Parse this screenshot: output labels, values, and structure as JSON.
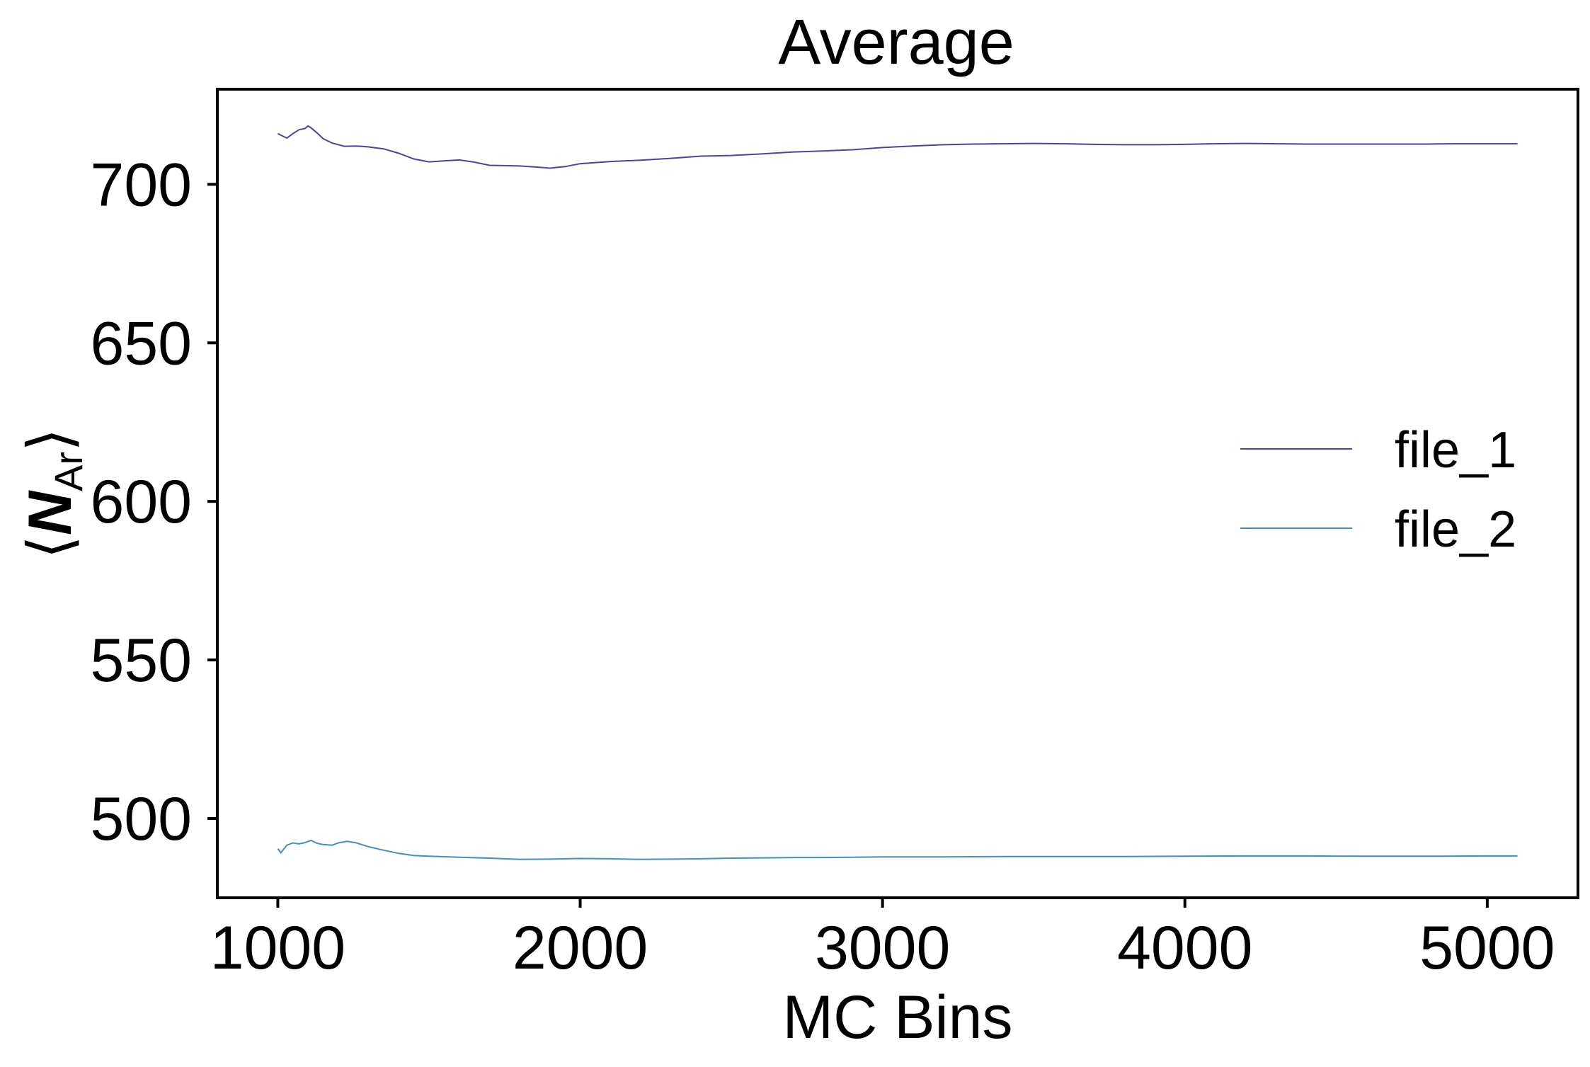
{
  "chart_data": {
    "type": "line",
    "title": "Average",
    "xlabel": "MC Bins",
    "ylabel": {
      "open": "⟨",
      "symbol": "N",
      "subscript": "Ar",
      "close": "⟩"
    },
    "xlim": [
      800,
      5300
    ],
    "ylim": [
      475,
      730
    ],
    "xticks": [
      1000,
      2000,
      3000,
      4000,
      5000
    ],
    "xtick_labels": [
      "1000",
      "2000",
      "3000",
      "4000",
      "5000"
    ],
    "yticks": [
      500,
      550,
      600,
      650,
      700
    ],
    "ytick_labels": [
      "500",
      "550",
      "600",
      "650",
      "700"
    ],
    "grid": false,
    "legend": {
      "placement": "center-right"
    },
    "series": [
      {
        "name": "file_1",
        "color": "#4b43a3",
        "points": [
          [
            1000,
            716
          ],
          [
            1010,
            715.5
          ],
          [
            1030,
            714.6
          ],
          [
            1050,
            716
          ],
          [
            1070,
            717.2
          ],
          [
            1090,
            717.6
          ],
          [
            1100,
            718.4
          ],
          [
            1110,
            717.8
          ],
          [
            1130,
            716.2
          ],
          [
            1150,
            714.4
          ],
          [
            1180,
            713
          ],
          [
            1220,
            712
          ],
          [
            1260,
            712.1
          ],
          [
            1300,
            711.8
          ],
          [
            1350,
            711.2
          ],
          [
            1400,
            709.8
          ],
          [
            1450,
            708
          ],
          [
            1500,
            707.1
          ],
          [
            1550,
            707.4
          ],
          [
            1600,
            707.7
          ],
          [
            1650,
            707
          ],
          [
            1700,
            706
          ],
          [
            1800,
            705.8
          ],
          [
            1850,
            705.5
          ],
          [
            1900,
            705.1
          ],
          [
            1950,
            705.6
          ],
          [
            2000,
            706.5
          ],
          [
            2100,
            707.2
          ],
          [
            2200,
            707.6
          ],
          [
            2300,
            708.2
          ],
          [
            2400,
            708.9
          ],
          [
            2500,
            709.1
          ],
          [
            2600,
            709.6
          ],
          [
            2700,
            710.2
          ],
          [
            2800,
            710.5
          ],
          [
            2900,
            710.9
          ],
          [
            3000,
            711.6
          ],
          [
            3100,
            712.1
          ],
          [
            3200,
            712.5
          ],
          [
            3300,
            712.7
          ],
          [
            3400,
            712.8
          ],
          [
            3500,
            712.9
          ],
          [
            3600,
            712.8
          ],
          [
            3700,
            712.6
          ],
          [
            3800,
            712.5
          ],
          [
            3900,
            712.5
          ],
          [
            4000,
            712.6
          ],
          [
            4100,
            712.8
          ],
          [
            4200,
            712.9
          ],
          [
            4300,
            712.8
          ],
          [
            4400,
            712.7
          ],
          [
            4500,
            712.7
          ],
          [
            4600,
            712.7
          ],
          [
            4700,
            712.7
          ],
          [
            4800,
            712.7
          ],
          [
            4900,
            712.8
          ],
          [
            5000,
            712.8
          ],
          [
            5100,
            712.8
          ]
        ]
      },
      {
        "name": "file_2",
        "color": "#3f8fc5",
        "points": [
          [
            1000,
            490.5
          ],
          [
            1010,
            489.2
          ],
          [
            1030,
            491.6
          ],
          [
            1050,
            492.3
          ],
          [
            1070,
            492
          ],
          [
            1090,
            492.4
          ],
          [
            1110,
            493.1
          ],
          [
            1130,
            492.2
          ],
          [
            1150,
            491.8
          ],
          [
            1180,
            491.6
          ],
          [
            1200,
            492.3
          ],
          [
            1230,
            492.8
          ],
          [
            1260,
            492.3
          ],
          [
            1300,
            491.1
          ],
          [
            1350,
            490
          ],
          [
            1400,
            489
          ],
          [
            1450,
            488.3
          ],
          [
            1500,
            488.1
          ],
          [
            1600,
            487.8
          ],
          [
            1700,
            487.5
          ],
          [
            1800,
            487.1
          ],
          [
            1900,
            487.2
          ],
          [
            2000,
            487.4
          ],
          [
            2100,
            487.3
          ],
          [
            2200,
            487.1
          ],
          [
            2300,
            487.2
          ],
          [
            2400,
            487.3
          ],
          [
            2500,
            487.5
          ],
          [
            2600,
            487.6
          ],
          [
            2700,
            487.7
          ],
          [
            2800,
            487.7
          ],
          [
            2900,
            487.8
          ],
          [
            3000,
            487.9
          ],
          [
            3200,
            487.9
          ],
          [
            3400,
            488
          ],
          [
            3600,
            488
          ],
          [
            3800,
            488
          ],
          [
            4000,
            488.1
          ],
          [
            4200,
            488.2
          ],
          [
            4400,
            488.2
          ],
          [
            4600,
            488.1
          ],
          [
            4800,
            488.1
          ],
          [
            5000,
            488.2
          ],
          [
            5100,
            488.2
          ]
        ]
      }
    ]
  }
}
